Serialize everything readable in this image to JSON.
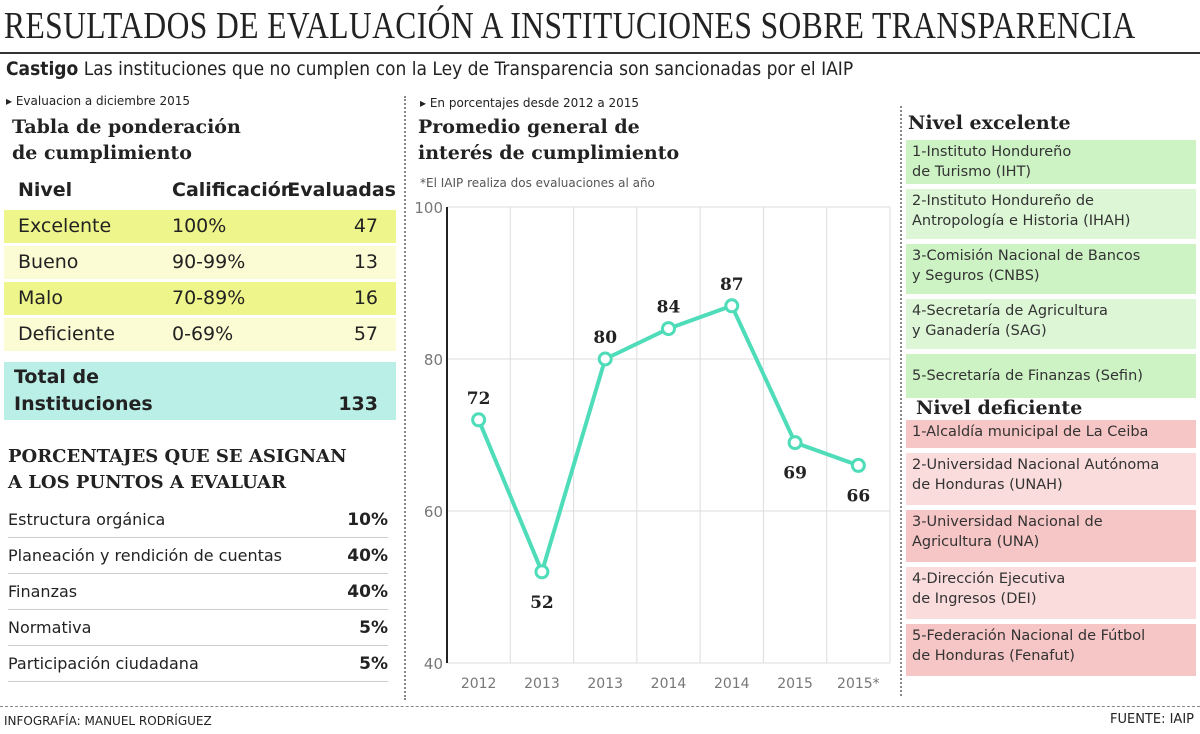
{
  "header": {
    "title": "RESULTADOS DE EVALUACIÓN A INSTITUCIONES SOBRE TRANSPARENCIA",
    "sub_bold": "Castigo",
    "sub_text": "Las instituciones que no cumplen con la Ley de Transparencia son sancionadas por el IAIP"
  },
  "table": {
    "kicker": "Evaluacion a diciembre  2015",
    "title_1": "Tabla de ponderación",
    "title_2": "de cumplimiento",
    "headers": [
      "Nivel",
      "Calificación",
      "Evaluadas"
    ],
    "rows": [
      [
        "Excelente",
        "100%",
        "47"
      ],
      [
        "Bueno",
        "90-99%",
        "13"
      ],
      [
        "Malo",
        "70-89%",
        "16"
      ],
      [
        "Deficiente",
        "0-69%",
        "57"
      ]
    ],
    "total_1": "Total de",
    "total_2": "Instituciones",
    "total_value": "133",
    "row_colors": [
      "#eef58a",
      "#fbfbd4",
      "#eef58a",
      "#fbfbd4"
    ],
    "total_color": "#b9efe6"
  },
  "points": {
    "title_1": "PORCENTAJES QUE SE ASIGNAN",
    "title_2": "A LOS PUNTOS A EVALUAR",
    "rows": [
      [
        "Estructura orgánica",
        "10%"
      ],
      [
        "Planeación y rendición de cuentas",
        "40%"
      ],
      [
        "Finanzas",
        "40%"
      ],
      [
        "Normativa",
        "5%"
      ],
      [
        "Participación ciudadana",
        "5%"
      ]
    ]
  },
  "chart_data": {
    "type": "line",
    "kicker": "En porcentajes desde 2012 a 2015",
    "title_1": "Promedio general de",
    "title_2": "interés de cumplimiento",
    "note": "*El IAIP realiza dos evaluaciones al año",
    "categories": [
      "2012",
      "2013",
      "2013",
      "2014",
      "2014",
      "2015",
      "2015*"
    ],
    "values": [
      72,
      52,
      80,
      84,
      87,
      69,
      66
    ],
    "ylim": [
      40,
      100
    ],
    "yticks": [
      "100",
      "80",
      "60",
      "40"
    ],
    "grid": true,
    "line_color": "#4fdcb9"
  },
  "excelente": {
    "title": "Nivel excelente",
    "items": [
      [
        "1-Instituto Hondureño",
        "de Turismo (IHT)"
      ],
      [
        "2-Instituto Hondureño de",
        "Antropología e Historia (IHAH)"
      ],
      [
        "3-Comisión Nacional de Bancos",
        "y Seguros (CNBS)"
      ],
      [
        "4-Secretaría de Agricultura",
        "y Ganadería (SAG)"
      ],
      [
        "5-Secretaría de Finanzas (Sefin)",
        ""
      ]
    ]
  },
  "deficiente": {
    "title": "Nivel deficiente",
    "items": [
      [
        "1-Alcaldía municipal de La Ceiba",
        ""
      ],
      [
        "2-Universidad Nacional Autónoma",
        "de Honduras (UNAH)"
      ],
      [
        "3-Universidad Nacional de",
        "Agricultura (UNA)"
      ],
      [
        "4-Dirección Ejecutiva",
        "de Ingresos (DEI)"
      ],
      [
        "5-Federación Nacional de Fútbol",
        "de Honduras (Fenafut)"
      ]
    ]
  },
  "footer": {
    "credit": "INFOGRAFÍA: MANUEL RODRÍGUEZ",
    "source": "FUENTE: IAIP"
  }
}
